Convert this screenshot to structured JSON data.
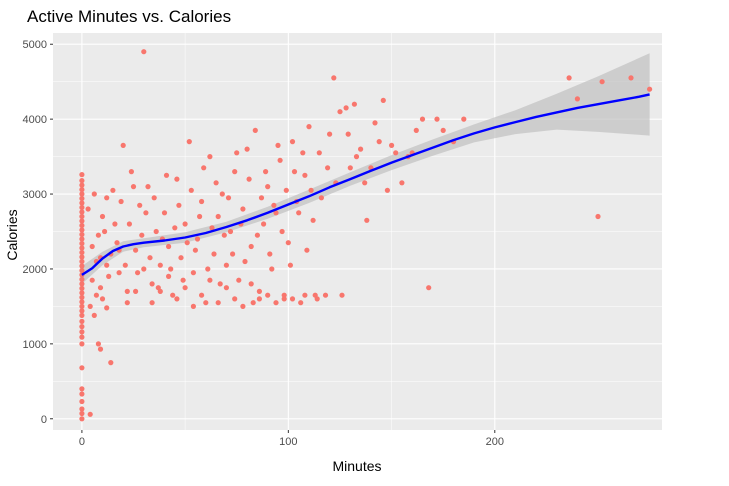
{
  "chart_data": {
    "type": "scatter",
    "title": "Active Minutes vs. Calories",
    "xlabel": "Minutes",
    "ylabel": "Calories",
    "xlim": [
      -14,
      281
    ],
    "ylim": [
      -150,
      5150
    ],
    "x_ticks": [
      0,
      100,
      200
    ],
    "y_ticks": [
      0,
      1000,
      2000,
      3000,
      4000,
      5000
    ],
    "grid": true,
    "legend": "none",
    "colors": {
      "panel_bg": "#ebebeb",
      "grid": "#ffffff",
      "points": "#f8766d",
      "smooth_line": "#0000ff",
      "ribbon": "#bdbdbd"
    },
    "points": [
      [
        0,
        0
      ],
      [
        0,
        70
      ],
      [
        0,
        130
      ],
      [
        0,
        230
      ],
      [
        0,
        330
      ],
      [
        0,
        400
      ],
      [
        0,
        680
      ],
      [
        0,
        1000
      ],
      [
        0,
        1090
      ],
      [
        0,
        1160
      ],
      [
        0,
        1230
      ],
      [
        0,
        1300
      ],
      [
        0,
        1380
      ],
      [
        0,
        1440
      ],
      [
        0,
        1500
      ],
      [
        0,
        1560
      ],
      [
        0,
        1620
      ],
      [
        0,
        1680
      ],
      [
        0,
        1740
      ],
      [
        0,
        1800
      ],
      [
        0,
        1860
      ],
      [
        0,
        1920
      ],
      [
        0,
        1980
      ],
      [
        0,
        2040
      ],
      [
        0,
        2100
      ],
      [
        0,
        2160
      ],
      [
        0,
        2220
      ],
      [
        0,
        2280
      ],
      [
        0,
        2340
      ],
      [
        0,
        2400
      ],
      [
        0,
        2460
      ],
      [
        0,
        2520
      ],
      [
        0,
        2580
      ],
      [
        0,
        2640
      ],
      [
        0,
        2700
      ],
      [
        0,
        2760
      ],
      [
        0,
        2820
      ],
      [
        0,
        2880
      ],
      [
        0,
        2940
      ],
      [
        0,
        3000
      ],
      [
        0,
        3060
      ],
      [
        0,
        3120
      ],
      [
        0,
        3180
      ],
      [
        0,
        3260
      ],
      [
        4,
        60
      ],
      [
        6,
        1380
      ],
      [
        8,
        1000
      ],
      [
        9,
        930
      ],
      [
        14,
        750
      ],
      [
        10,
        1600
      ],
      [
        12,
        1480
      ],
      [
        5,
        1850
      ],
      [
        7,
        2100
      ],
      [
        8,
        2450
      ],
      [
        10,
        2700
      ],
      [
        12,
        2950
      ],
      [
        14,
        2200
      ],
      [
        16,
        2600
      ],
      [
        18,
        1950
      ],
      [
        20,
        3650
      ],
      [
        30,
        4900
      ],
      [
        24,
        3300
      ],
      [
        22,
        1700
      ],
      [
        26,
        2250
      ],
      [
        28,
        2850
      ],
      [
        32,
        3100
      ],
      [
        34,
        1800
      ],
      [
        36,
        2500
      ],
      [
        38,
        2050
      ],
      [
        40,
        2750
      ],
      [
        42,
        2300
      ],
      [
        44,
        1650
      ],
      [
        46,
        3200
      ],
      [
        48,
        2150
      ],
      [
        50,
        2600
      ],
      [
        52,
        3700
      ],
      [
        54,
        1950
      ],
      [
        56,
        2400
      ],
      [
        58,
        2900
      ],
      [
        60,
        1550
      ],
      [
        62,
        3500
      ],
      [
        64,
        2200
      ],
      [
        66,
        2700
      ],
      [
        68,
        3000
      ],
      [
        70,
        2050
      ],
      [
        72,
        2500
      ],
      [
        74,
        3300
      ],
      [
        76,
        1850
      ],
      [
        78,
        2800
      ],
      [
        80,
        3600
      ],
      [
        82,
        2300
      ],
      [
        84,
        3850
      ],
      [
        86,
        1700
      ],
      [
        88,
        2600
      ],
      [
        90,
        3100
      ],
      [
        92,
        2000
      ],
      [
        94,
        2750
      ],
      [
        96,
        3450
      ],
      [
        98,
        1600
      ],
      [
        100,
        2350
      ],
      [
        102,
        3700
      ],
      [
        104,
        2900
      ],
      [
        106,
        1550
      ],
      [
        108,
        3250
      ],
      [
        110,
        3900
      ],
      [
        112,
        2650
      ],
      [
        115,
        3550
      ],
      [
        118,
        1650
      ],
      [
        120,
        3800
      ],
      [
        122,
        4550
      ],
      [
        125,
        4100
      ],
      [
        128,
        4150
      ],
      [
        130,
        3350
      ],
      [
        132,
        4200
      ],
      [
        135,
        3600
      ],
      [
        138,
        2650
      ],
      [
        142,
        3950
      ],
      [
        146,
        4250
      ],
      [
        150,
        3650
      ],
      [
        155,
        3150
      ],
      [
        160,
        3550
      ],
      [
        165,
        4000
      ],
      [
        168,
        1750
      ],
      [
        172,
        4000
      ],
      [
        180,
        3700
      ],
      [
        185,
        4000
      ],
      [
        236,
        4550
      ],
      [
        240,
        4270
      ],
      [
        250,
        2700
      ],
      [
        252,
        4500
      ],
      [
        266,
        4550
      ],
      [
        275,
        4400
      ],
      [
        3,
        2800
      ],
      [
        5,
        2300
      ],
      [
        6,
        3000
      ],
      [
        9,
        2150
      ],
      [
        11,
        2500
      ],
      [
        13,
        1900
      ],
      [
        15,
        3050
      ],
      [
        17,
        2350
      ],
      [
        19,
        2900
      ],
      [
        21,
        2050
      ],
      [
        23,
        2600
      ],
      [
        25,
        3100
      ],
      [
        27,
        1950
      ],
      [
        29,
        2450
      ],
      [
        31,
        2750
      ],
      [
        33,
        2150
      ],
      [
        35,
        2950
      ],
      [
        37,
        1750
      ],
      [
        39,
        2400
      ],
      [
        41,
        3250
      ],
      [
        43,
        2000
      ],
      [
        45,
        2550
      ],
      [
        47,
        2850
      ],
      [
        49,
        1850
      ],
      [
        51,
        2350
      ],
      [
        53,
        3050
      ],
      [
        55,
        2250
      ],
      [
        57,
        2700
      ],
      [
        59,
        3350
      ],
      [
        61,
        2000
      ],
      [
        63,
        2550
      ],
      [
        65,
        3150
      ],
      [
        67,
        1800
      ],
      [
        69,
        2450
      ],
      [
        71,
        2950
      ],
      [
        73,
        2200
      ],
      [
        75,
        3550
      ],
      [
        77,
        2600
      ],
      [
        79,
        2100
      ],
      [
        81,
        3200
      ],
      [
        83,
        1550
      ],
      [
        85,
        2450
      ],
      [
        87,
        2950
      ],
      [
        89,
        3300
      ],
      [
        91,
        2200
      ],
      [
        93,
        2850
      ],
      [
        95,
        3650
      ],
      [
        97,
        2500
      ],
      [
        99,
        3050
      ],
      [
        101,
        2050
      ],
      [
        103,
        3300
      ],
      [
        105,
        2750
      ],
      [
        107,
        3550
      ],
      [
        109,
        2250
      ],
      [
        111,
        3050
      ],
      [
        113,
        1650
      ],
      [
        116,
        2950
      ],
      [
        119,
        3350
      ],
      [
        123,
        3150
      ],
      [
        126,
        1650
      ],
      [
        129,
        3800
      ],
      [
        133,
        3500
      ],
      [
        137,
        3150
      ],
      [
        140,
        3350
      ],
      [
        144,
        3700
      ],
      [
        148,
        3050
      ],
      [
        152,
        3550
      ],
      [
        158,
        3500
      ],
      [
        162,
        3850
      ],
      [
        175,
        3850
      ],
      [
        4,
        1500
      ],
      [
        7,
        1650
      ],
      [
        9,
        1750
      ],
      [
        12,
        2050
      ],
      [
        18,
        2250
      ],
      [
        22,
        1550
      ],
      [
        26,
        1700
      ],
      [
        30,
        2000
      ],
      [
        34,
        1550
      ],
      [
        38,
        1700
      ],
      [
        42,
        1900
      ],
      [
        46,
        1600
      ],
      [
        50,
        1750
      ],
      [
        54,
        1500
      ],
      [
        58,
        1650
      ],
      [
        62,
        1850
      ],
      [
        66,
        1550
      ],
      [
        70,
        1750
      ],
      [
        74,
        1600
      ],
      [
        78,
        1500
      ],
      [
        82,
        1800
      ],
      [
        86,
        1600
      ],
      [
        90,
        1650
      ],
      [
        94,
        1550
      ],
      [
        98,
        1650
      ],
      [
        102,
        1600
      ],
      [
        108,
        1650
      ],
      [
        114,
        1600
      ]
    ],
    "smooth_line": {
      "x": [
        0,
        5,
        10,
        15,
        20,
        25,
        30,
        40,
        50,
        60,
        70,
        80,
        90,
        100,
        110,
        120,
        130,
        140,
        150,
        160,
        170,
        180,
        190,
        200,
        210,
        220,
        230,
        240,
        250,
        260,
        270,
        275
      ],
      "y": [
        1920,
        2010,
        2140,
        2240,
        2300,
        2330,
        2350,
        2380,
        2420,
        2480,
        2560,
        2650,
        2750,
        2860,
        2970,
        3090,
        3200,
        3310,
        3420,
        3520,
        3620,
        3720,
        3810,
        3890,
        3960,
        4030,
        4090,
        4150,
        4200,
        4250,
        4300,
        4330
      ]
    },
    "ribbon": {
      "x": [
        0,
        10,
        20,
        30,
        50,
        70,
        90,
        110,
        130,
        150,
        170,
        190,
        210,
        230,
        250,
        275
      ],
      "upper": [
        2040,
        2230,
        2370,
        2410,
        2490,
        2630,
        2830,
        3060,
        3290,
        3520,
        3730,
        3930,
        4120,
        4340,
        4570,
        4880
      ],
      "lower": [
        1800,
        2050,
        2230,
        2290,
        2350,
        2490,
        2670,
        2880,
        3110,
        3320,
        3510,
        3690,
        3800,
        3860,
        3830,
        3780
      ]
    }
  }
}
